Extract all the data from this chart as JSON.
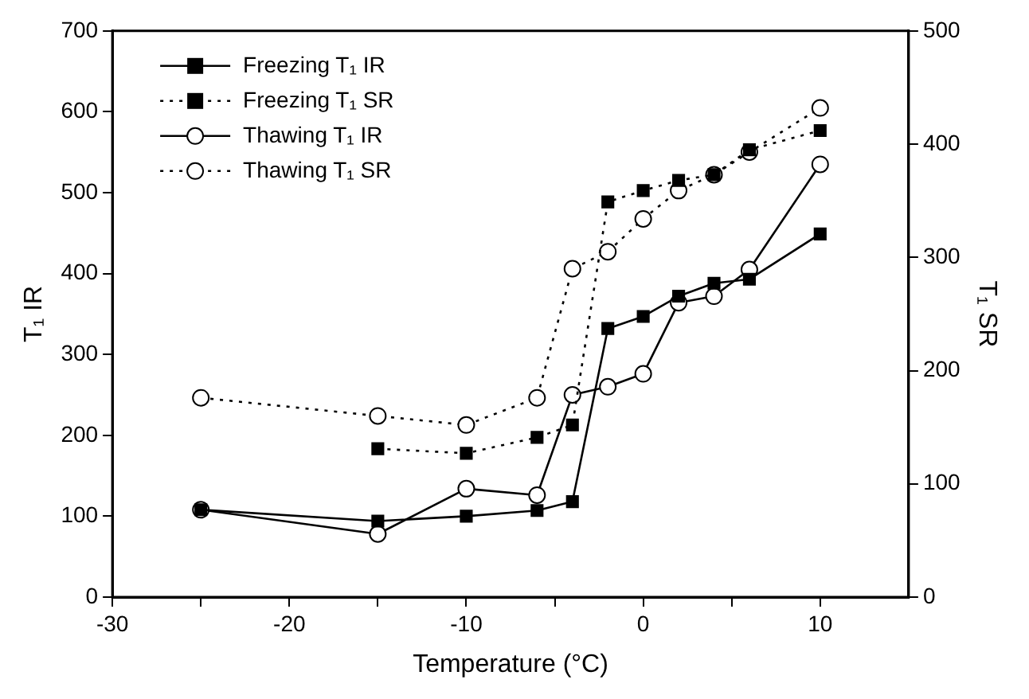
{
  "chart_data": {
    "type": "line",
    "xlabel": "Temperature (°C)",
    "ylabel": "T₁ IR",
    "y2label": "T₁ SR",
    "xlim": [
      -30,
      15
    ],
    "xticks": [
      -30,
      {
        "value": -25,
        "label": null
      },
      -20,
      {
        "value": -15,
        "label": null
      },
      -10,
      {
        "value": -5,
        "label": null
      },
      0,
      {
        "value": 5,
        "label": null
      },
      10
    ],
    "ylim": [
      0,
      700
    ],
    "yticks": [
      0,
      100,
      200,
      300,
      400,
      500,
      600,
      700
    ],
    "y2lim": [
      0,
      500
    ],
    "y2ticks": [
      0,
      100,
      200,
      300,
      400,
      500
    ],
    "grid": false,
    "legend": "top left",
    "series": [
      {
        "name": "Freezing T₁ IR",
        "color": "#000000",
        "marker": "square",
        "line_style": "solid",
        "x": [
          -25,
          -15,
          -10,
          -6,
          -4,
          -2,
          0,
          2,
          4,
          6,
          10
        ],
        "values": [
          108,
          94,
          100,
          107,
          118,
          332,
          347,
          372,
          388,
          393,
          449
        ]
      },
      {
        "name": "Freezing T₁ SR",
        "color": "#000000",
        "marker": "square",
        "line_style": "dotted",
        "axis": "y2",
        "x": [
          -15,
          -10,
          -6,
          -4,
          -2,
          0,
          2,
          4,
          6,
          10
        ],
        "values": [
          131,
          127,
          141,
          152,
          349,
          359,
          368,
          373,
          395,
          412
        ]
      },
      {
        "name": "Thawing T₁ IR",
        "color": "#000000",
        "marker": "circle",
        "line_style": "solid",
        "x": [
          -25,
          -15,
          -10,
          -6,
          -4,
          -2,
          0,
          2,
          4,
          6,
          10
        ],
        "values": [
          108,
          78,
          134,
          126,
          250,
          260,
          276,
          364,
          372,
          405,
          535
        ]
      },
      {
        "name": "Thawing T₁ SR",
        "color": "#000000",
        "marker": "circle",
        "line_style": "dotted",
        "axis": "y2",
        "x": [
          -25,
          -15,
          -10,
          -6,
          -4,
          -2,
          0,
          2,
          4,
          6,
          10
        ],
        "values": [
          176,
          160,
          152,
          176,
          290,
          305,
          334,
          359,
          373,
          393,
          432
        ]
      }
    ]
  }
}
